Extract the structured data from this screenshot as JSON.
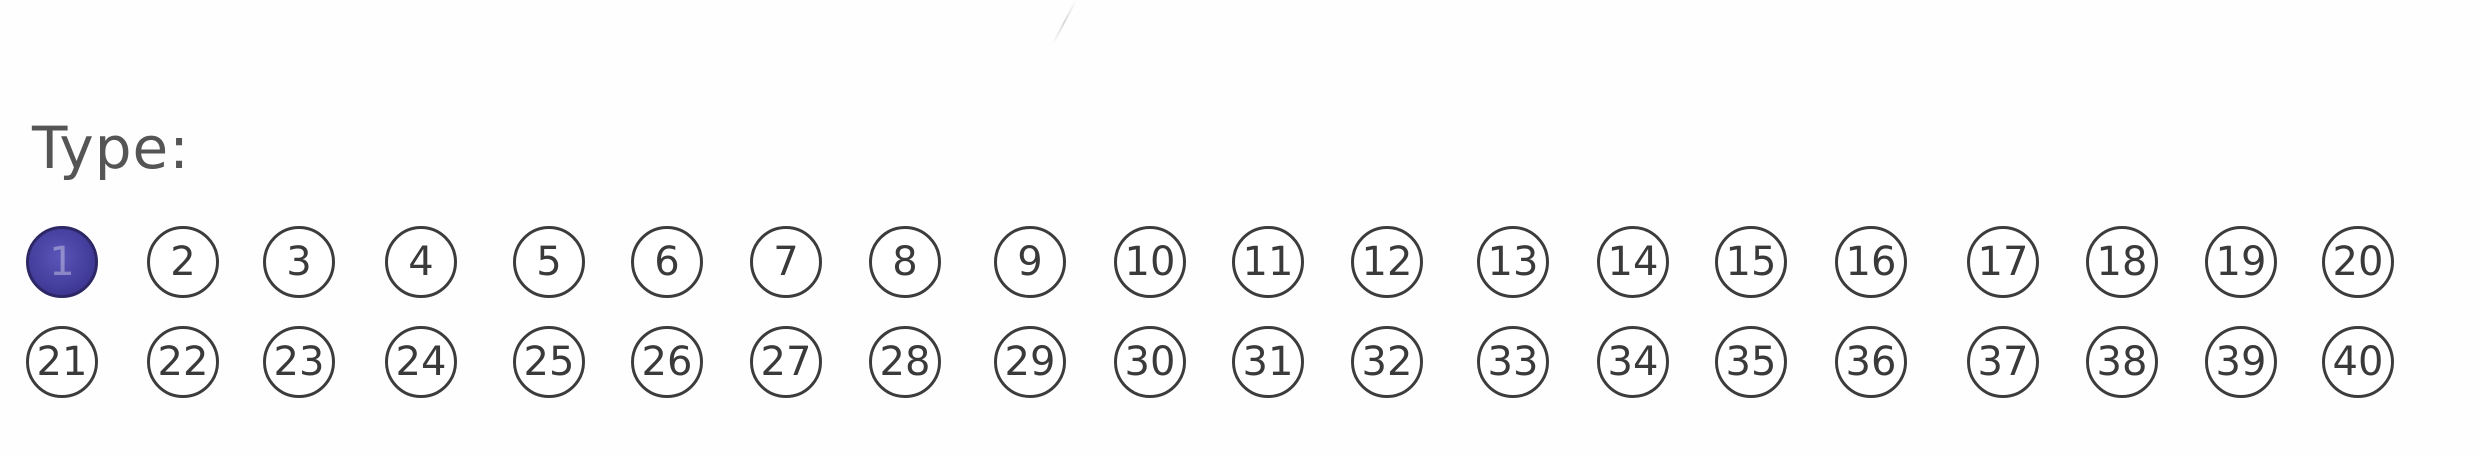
{
  "form": {
    "type_label": "Type:",
    "selected_value": "1",
    "bubble_rows": [
      [
        "1",
        "2",
        "3",
        "4",
        "5",
        "6",
        "7",
        "8",
        "9",
        "10",
        "11",
        "12",
        "13",
        "14",
        "15",
        "16",
        "17",
        "18",
        "19",
        "20"
      ],
      [
        "21",
        "22",
        "23",
        "24",
        "25",
        "26",
        "27",
        "28",
        "29",
        "30",
        "31",
        "32",
        "33",
        "34",
        "35",
        "36",
        "37",
        "38",
        "39",
        "40"
      ]
    ]
  },
  "colors": {
    "fill_mark": "#453f9e",
    "bubble_outline": "#3c3c3c",
    "label_text": "#555555"
  }
}
